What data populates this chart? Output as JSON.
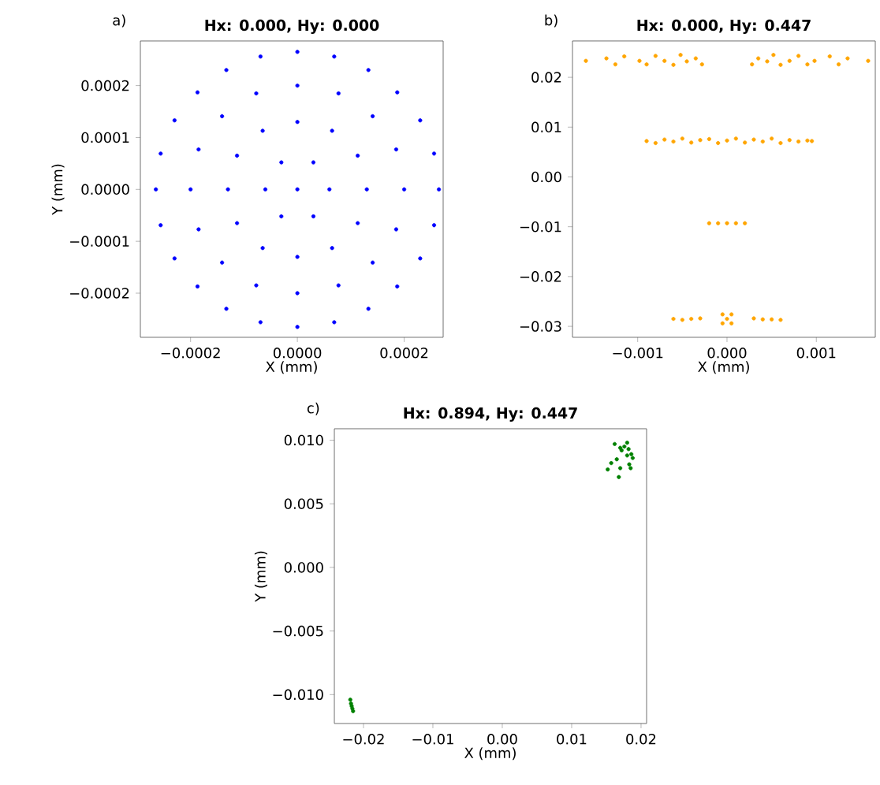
{
  "chart_data": [
    {
      "type": "scatter",
      "title": "Hx: 0.000, Hy: 0.000",
      "xlabel": "X (mm)",
      "ylabel": "Y (mm)",
      "annotations": [
        "a)"
      ],
      "color": "#0000ff",
      "xlim": [
        -0.000294,
        0.000273
      ],
      "ylim": [
        -0.000285,
        0.000286
      ],
      "xticks": [
        {
          "value": -0.0002,
          "label": "−0.0002"
        },
        {
          "value": 0,
          "label": "0.0000"
        },
        {
          "value": 0.0002,
          "label": "0.0002"
        }
      ],
      "yticks": [
        {
          "value": -0.0002,
          "label": "−0.0002"
        },
        {
          "value": -0.0001,
          "label": "−0.0001"
        },
        {
          "value": 0,
          "label": "0.0000"
        },
        {
          "value": 0.0001,
          "label": "0.0001"
        },
        {
          "value": 0.0002,
          "label": "0.0002"
        }
      ],
      "x": [
        0,
        6e-05,
        3e-05,
        -3e-05,
        -6e-05,
        -3e-05,
        3e-05,
        0.00013,
        0.000113,
        6.5e-05,
        0,
        -6.5e-05,
        -0.000113,
        -0.00013,
        -0.000113,
        -6.5e-05,
        0,
        6.5e-05,
        0.000113,
        0.0002,
        0.000185,
        0.000141,
        7.7e-05,
        0,
        -7.7e-05,
        -0.000141,
        -0.000185,
        -0.0002,
        -0.000185,
        -0.000141,
        -7.7e-05,
        0,
        7.7e-05,
        0.000141,
        0.000185,
        0.000265,
        0.000256,
        0.00023,
        0.000187,
        0.000133,
        6.9e-05,
        0,
        -6.9e-05,
        -0.000133,
        -0.000187,
        -0.00023,
        -0.000256,
        -0.000265,
        -0.000256,
        -0.00023,
        -0.000187,
        -0.000133,
        -6.9e-05,
        0,
        6.9e-05,
        0.000133,
        0.000187,
        0.00023,
        0.000256
      ],
      "values": [
        0,
        0,
        5.2e-05,
        5.2e-05,
        0,
        -5.2e-05,
        -5.2e-05,
        0,
        6.5e-05,
        0.000113,
        0.00013,
        0.000113,
        6.5e-05,
        0,
        -6.5e-05,
        -0.000113,
        -0.00013,
        -0.000113,
        -6.5e-05,
        0,
        7.7e-05,
        0.000141,
        0.000185,
        0.0002,
        0.000185,
        0.000141,
        7.7e-05,
        0,
        -7.7e-05,
        -0.000141,
        -0.000185,
        -0.0002,
        -0.000185,
        -0.000141,
        -7.7e-05,
        0,
        6.9e-05,
        0.000133,
        0.000187,
        0.00023,
        0.000256,
        0.000265,
        0.000256,
        0.00023,
        0.000187,
        0.000133,
        6.9e-05,
        0,
        -6.9e-05,
        -0.000133,
        -0.000187,
        -0.00023,
        -0.000256,
        -0.000265,
        -0.000256,
        -0.00023,
        -0.000187,
        -0.000133,
        -6.9e-05
      ]
    },
    {
      "type": "scatter",
      "title": "Hx: 0.000, Hy: 0.447",
      "xlabel": "X (mm)",
      "annotations": [
        "b)"
      ],
      "color": "#ffa500",
      "xlim": [
        -0.00173,
        0.00166
      ],
      "ylim": [
        -0.0322,
        0.0273
      ],
      "xticks": [
        {
          "value": -0.001,
          "label": "−0.001"
        },
        {
          "value": 0,
          "label": "0.000"
        },
        {
          "value": 0.001,
          "label": "0.001"
        }
      ],
      "yticks": [
        {
          "value": -0.03,
          "label": "−0.03"
        },
        {
          "value": -0.02,
          "label": "−0.02"
        },
        {
          "value": -0.01,
          "label": "−0.01"
        },
        {
          "value": 0,
          "label": "0.00"
        },
        {
          "value": 0.01,
          "label": "0.01"
        },
        {
          "value": 0.02,
          "label": "0.02"
        }
      ],
      "x": [
        -0.00158,
        -0.00135,
        -0.00125,
        -0.00115,
        -0.00098,
        -0.0009,
        -0.0008,
        -0.0007,
        -0.0006,
        -0.00052,
        -0.00045,
        -0.00035,
        -0.00028,
        0.00028,
        0.00035,
        0.00045,
        0.00052,
        0.0006,
        0.0007,
        0.0008,
        0.0009,
        0.00098,
        0.00115,
        0.00125,
        0.00135,
        0.00158,
        -0.0009,
        -0.0008,
        -0.0007,
        -0.0006,
        -0.0005,
        -0.0004,
        -0.0003,
        -0.0002,
        -0.0001,
        0,
        0.0001,
        0.0002,
        0.0003,
        0.0004,
        0.0005,
        0.0006,
        0.0007,
        0.0008,
        0.0009,
        0.00095,
        -0.0002,
        -0.0001,
        0,
        0.0001,
        0.0002,
        -0.0006,
        -0.0005,
        -0.0004,
        -0.0003,
        -5e-05,
        0,
        5e-05,
        -5e-05,
        5e-05,
        0.0003,
        0.0004,
        0.0005,
        0.0006
      ],
      "values": [
        0.0233,
        0.0238,
        0.0226,
        0.0242,
        0.0233,
        0.0226,
        0.0243,
        0.0233,
        0.0225,
        0.0245,
        0.0232,
        0.0238,
        0.0226,
        0.0226,
        0.0238,
        0.0232,
        0.0245,
        0.0225,
        0.0233,
        0.0243,
        0.0226,
        0.0233,
        0.0242,
        0.0226,
        0.0238,
        0.0233,
        0.0072,
        0.0068,
        0.0075,
        0.0071,
        0.0077,
        0.0069,
        0.0074,
        0.0076,
        0.0068,
        0.0073,
        0.0077,
        0.0069,
        0.0075,
        0.0071,
        0.0077,
        0.0068,
        0.0074,
        0.0071,
        0.0073,
        0.0072,
        -0.0093,
        -0.0093,
        -0.0093,
        -0.0093,
        -0.0093,
        -0.0285,
        -0.0287,
        -0.0285,
        -0.0284,
        -0.0276,
        -0.0285,
        -0.0276,
        -0.0294,
        -0.0294,
        -0.0284,
        -0.0286,
        -0.0286,
        -0.0287
      ]
    },
    {
      "type": "scatter",
      "title": "Hx: 0.894, Hy: 0.447",
      "xlabel": "X (mm)",
      "ylabel": "Y (mm)",
      "annotations": [
        "c)"
      ],
      "color": "#008000",
      "xlim": [
        -0.0242,
        0.0208
      ],
      "ylim": [
        -0.01227,
        0.0109
      ],
      "xticks": [
        {
          "value": -0.02,
          "label": "−0.02"
        },
        {
          "value": -0.01,
          "label": "−0.01"
        },
        {
          "value": 0,
          "label": "0.00"
        },
        {
          "value": 0.01,
          "label": "0.01"
        },
        {
          "value": 0.02,
          "label": "0.02"
        }
      ],
      "yticks": [
        {
          "value": -0.01,
          "label": "−0.010"
        },
        {
          "value": -0.005,
          "label": "−0.005"
        },
        {
          "value": 0,
          "label": "0.000"
        },
        {
          "value": 0.005,
          "label": "0.005"
        },
        {
          "value": 0.01,
          "label": "0.010"
        }
      ],
      "x": [
        0.0162,
        0.017,
        0.0176,
        0.018,
        0.0172,
        0.0182,
        0.0186,
        0.0188,
        0.018,
        0.0165,
        0.0157,
        0.0152,
        0.017,
        0.0183,
        0.0185,
        0.0168,
        -0.0219,
        -0.0218,
        -0.0217,
        -0.0216,
        -0.0215
      ],
      "values": [
        0.0097,
        0.0094,
        0.0095,
        0.0098,
        0.0092,
        0.0093,
        0.0089,
        0.0086,
        0.0088,
        0.0085,
        0.0082,
        0.0077,
        0.0078,
        0.0081,
        0.0078,
        0.0071,
        -0.0104,
        -0.0107,
        -0.0109,
        -0.0111,
        -0.0113
      ]
    }
  ]
}
